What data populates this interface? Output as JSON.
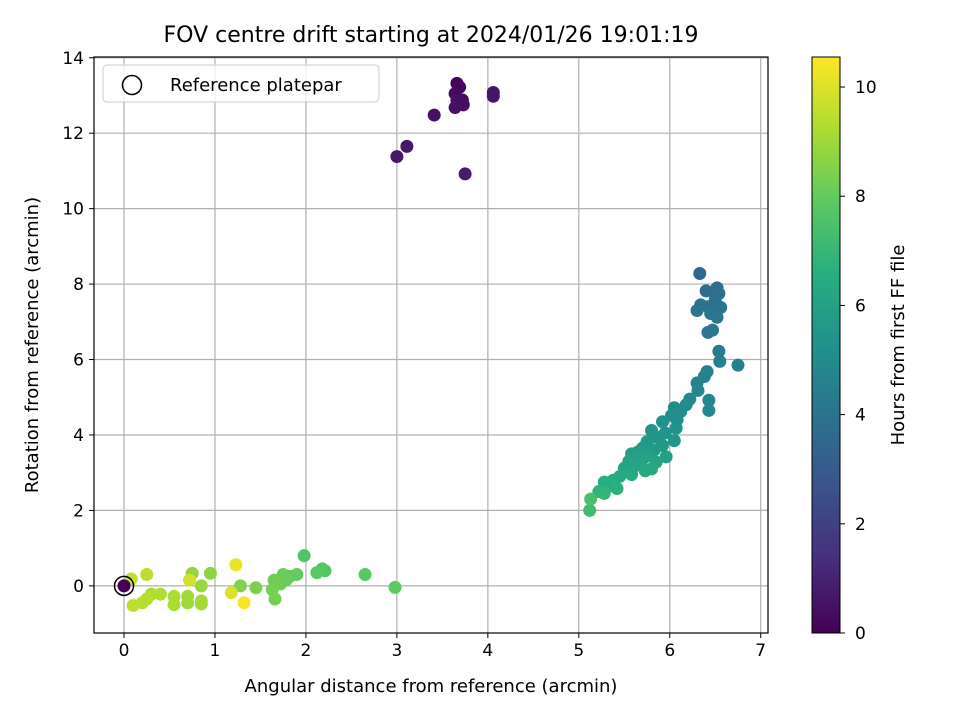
{
  "chart_data": {
    "type": "scatter",
    "title": "FOV centre drift starting at 2024/01/26 19:01:19",
    "xlabel": "Angular distance from reference (arcmin)",
    "ylabel": "Rotation from reference (arcmin)",
    "xlim": [
      -0.33,
      7.08
    ],
    "ylim": [
      -1.25,
      14.02
    ],
    "xticks": [
      0,
      1,
      2,
      3,
      4,
      5,
      6,
      7
    ],
    "yticks": [
      0,
      2,
      4,
      6,
      8,
      10,
      12,
      14
    ],
    "grid": true,
    "legend": {
      "placement": "top-left",
      "entries": [
        "Reference platepar"
      ]
    },
    "reference_point": {
      "x": 0,
      "y": 0
    },
    "colorbar": {
      "label": "Hours from first FF file",
      "colormap": "viridis",
      "range": [
        0,
        10.55
      ],
      "ticks": [
        0,
        2,
        4,
        6,
        8,
        10
      ]
    },
    "points": [
      {
        "x": 3.66,
        "y": 13.32,
        "c": 0.1
      },
      {
        "x": 3.69,
        "y": 13.22,
        "c": 0.2
      },
      {
        "x": 3.64,
        "y": 13.05,
        "c": 0.3
      },
      {
        "x": 3.72,
        "y": 12.88,
        "c": 0.3
      },
      {
        "x": 3.66,
        "y": 12.88,
        "c": 0.4
      },
      {
        "x": 3.73,
        "y": 12.75,
        "c": 0.4
      },
      {
        "x": 3.64,
        "y": 12.68,
        "c": 0.5
      },
      {
        "x": 3.41,
        "y": 12.48,
        "c": 0.5
      },
      {
        "x": 4.06,
        "y": 13.08,
        "c": 0.6
      },
      {
        "x": 4.06,
        "y": 12.98,
        "c": 0.6
      },
      {
        "x": 3.11,
        "y": 11.65,
        "c": 0.7
      },
      {
        "x": 3.0,
        "y": 11.38,
        "c": 0.7
      },
      {
        "x": 3.75,
        "y": 10.92,
        "c": 0.8
      },
      {
        "x": 6.33,
        "y": 8.28,
        "c": 3.6
      },
      {
        "x": 6.52,
        "y": 7.9,
        "c": 3.7
      },
      {
        "x": 6.4,
        "y": 7.82,
        "c": 3.7
      },
      {
        "x": 6.54,
        "y": 7.75,
        "c": 3.8
      },
      {
        "x": 6.5,
        "y": 7.6,
        "c": 3.8
      },
      {
        "x": 6.34,
        "y": 7.45,
        "c": 3.9
      },
      {
        "x": 6.42,
        "y": 7.4,
        "c": 3.9
      },
      {
        "x": 6.56,
        "y": 7.38,
        "c": 4.0
      },
      {
        "x": 6.3,
        "y": 7.3,
        "c": 4.0
      },
      {
        "x": 6.45,
        "y": 7.22,
        "c": 4.1
      },
      {
        "x": 6.52,
        "y": 7.12,
        "c": 4.1
      },
      {
        "x": 6.47,
        "y": 6.78,
        "c": 4.2
      },
      {
        "x": 6.42,
        "y": 6.72,
        "c": 4.2
      },
      {
        "x": 6.54,
        "y": 6.22,
        "c": 4.4
      },
      {
        "x": 6.55,
        "y": 5.95,
        "c": 4.5
      },
      {
        "x": 6.75,
        "y": 5.85,
        "c": 4.5
      },
      {
        "x": 6.41,
        "y": 5.68,
        "c": 4.6
      },
      {
        "x": 6.38,
        "y": 5.55,
        "c": 4.7
      },
      {
        "x": 6.3,
        "y": 5.38,
        "c": 4.7
      },
      {
        "x": 6.31,
        "y": 5.18,
        "c": 4.8
      },
      {
        "x": 6.43,
        "y": 4.92,
        "c": 4.8
      },
      {
        "x": 6.43,
        "y": 4.65,
        "c": 4.9
      },
      {
        "x": 6.22,
        "y": 4.95,
        "c": 4.9
      },
      {
        "x": 6.18,
        "y": 4.8,
        "c": 5.0
      },
      {
        "x": 6.05,
        "y": 4.72,
        "c": 5.0
      },
      {
        "x": 6.12,
        "y": 4.62,
        "c": 5.1
      },
      {
        "x": 6.02,
        "y": 4.52,
        "c": 5.2
      },
      {
        "x": 6.08,
        "y": 4.4,
        "c": 5.2
      },
      {
        "x": 5.92,
        "y": 4.35,
        "c": 5.3
      },
      {
        "x": 6.07,
        "y": 4.18,
        "c": 5.3
      },
      {
        "x": 5.8,
        "y": 4.12,
        "c": 5.4
      },
      {
        "x": 5.95,
        "y": 4.05,
        "c": 5.4
      },
      {
        "x": 5.85,
        "y": 3.95,
        "c": 5.5
      },
      {
        "x": 6.05,
        "y": 3.85,
        "c": 5.5
      },
      {
        "x": 5.75,
        "y": 3.82,
        "c": 5.6
      },
      {
        "x": 5.92,
        "y": 3.72,
        "c": 5.6
      },
      {
        "x": 5.7,
        "y": 3.65,
        "c": 5.7
      },
      {
        "x": 5.83,
        "y": 3.6,
        "c": 5.7
      },
      {
        "x": 5.65,
        "y": 3.55,
        "c": 5.8
      },
      {
        "x": 5.78,
        "y": 3.48,
        "c": 5.8
      },
      {
        "x": 5.58,
        "y": 3.5,
        "c": 5.9
      },
      {
        "x": 5.96,
        "y": 3.42,
        "c": 5.9
      },
      {
        "x": 5.72,
        "y": 3.4,
        "c": 6.0
      },
      {
        "x": 5.62,
        "y": 3.35,
        "c": 6.0
      },
      {
        "x": 5.55,
        "y": 3.3,
        "c": 6.1
      },
      {
        "x": 5.85,
        "y": 3.28,
        "c": 6.1
      },
      {
        "x": 5.68,
        "y": 3.22,
        "c": 6.1
      },
      {
        "x": 5.6,
        "y": 3.15,
        "c": 6.2
      },
      {
        "x": 5.5,
        "y": 3.12,
        "c": 6.2
      },
      {
        "x": 5.8,
        "y": 3.1,
        "c": 6.3
      },
      {
        "x": 5.73,
        "y": 3.05,
        "c": 6.3
      },
      {
        "x": 5.58,
        "y": 2.95,
        "c": 6.4
      },
      {
        "x": 5.45,
        "y": 2.9,
        "c": 6.4
      },
      {
        "x": 5.38,
        "y": 2.8,
        "c": 6.5
      },
      {
        "x": 5.28,
        "y": 2.75,
        "c": 6.6
      },
      {
        "x": 5.36,
        "y": 2.65,
        "c": 6.6
      },
      {
        "x": 5.42,
        "y": 2.58,
        "c": 6.7
      },
      {
        "x": 5.22,
        "y": 2.5,
        "c": 6.8
      },
      {
        "x": 5.28,
        "y": 2.45,
        "c": 6.9
      },
      {
        "x": 5.12,
        "y": 2.0,
        "c": 7.2
      },
      {
        "x": 5.13,
        "y": 2.3,
        "c": 7.4
      },
      {
        "x": 1.98,
        "y": 0.8,
        "c": 7.6
      },
      {
        "x": 2.18,
        "y": 0.45,
        "c": 7.7
      },
      {
        "x": 2.21,
        "y": 0.4,
        "c": 7.7
      },
      {
        "x": 2.12,
        "y": 0.35,
        "c": 7.8
      },
      {
        "x": 2.65,
        "y": 0.3,
        "c": 7.8
      },
      {
        "x": 2.98,
        "y": -0.04,
        "c": 7.9
      },
      {
        "x": 1.9,
        "y": 0.3,
        "c": 8.0
      },
      {
        "x": 1.82,
        "y": 0.25,
        "c": 8.0
      },
      {
        "x": 1.75,
        "y": 0.3,
        "c": 8.1
      },
      {
        "x": 1.78,
        "y": 0.15,
        "c": 8.1
      },
      {
        "x": 1.65,
        "y": 0.15,
        "c": 8.2
      },
      {
        "x": 1.72,
        "y": 0.05,
        "c": 8.2
      },
      {
        "x": 1.63,
        "y": -0.1,
        "c": 8.3
      },
      {
        "x": 1.66,
        "y": -0.35,
        "c": 8.3
      },
      {
        "x": 1.45,
        "y": -0.05,
        "c": 8.4
      },
      {
        "x": 1.28,
        "y": 0.0,
        "c": 8.5
      },
      {
        "x": 0.95,
        "y": 0.33,
        "c": 8.7
      },
      {
        "x": 0.75,
        "y": 0.33,
        "c": 8.8
      },
      {
        "x": 0.85,
        "y": 0.0,
        "c": 8.9
      },
      {
        "x": 0.7,
        "y": -0.28,
        "c": 9.0
      },
      {
        "x": 0.7,
        "y": -0.45,
        "c": 9.0
      },
      {
        "x": 0.85,
        "y": -0.4,
        "c": 9.1
      },
      {
        "x": 0.85,
        "y": -0.48,
        "c": 9.1
      },
      {
        "x": 0.55,
        "y": -0.28,
        "c": 9.2
      },
      {
        "x": 0.55,
        "y": -0.5,
        "c": 9.2
      },
      {
        "x": 0.4,
        "y": -0.22,
        "c": 9.3
      },
      {
        "x": 0.3,
        "y": -0.22,
        "c": 9.3
      },
      {
        "x": 0.25,
        "y": -0.35,
        "c": 9.4
      },
      {
        "x": 0.2,
        "y": -0.45,
        "c": 9.4
      },
      {
        "x": 0.1,
        "y": -0.52,
        "c": 9.5
      },
      {
        "x": 0.25,
        "y": 0.3,
        "c": 9.5
      },
      {
        "x": 0.08,
        "y": 0.18,
        "c": 9.6
      },
      {
        "x": 0.72,
        "y": 0.15,
        "c": 9.8
      },
      {
        "x": 1.18,
        "y": -0.18,
        "c": 10.0
      },
      {
        "x": 1.23,
        "y": 0.56,
        "c": 10.2
      },
      {
        "x": 1.32,
        "y": -0.45,
        "c": 10.4
      },
      {
        "x": 0.0,
        "y": 0.0,
        "c": 0.0
      }
    ]
  }
}
